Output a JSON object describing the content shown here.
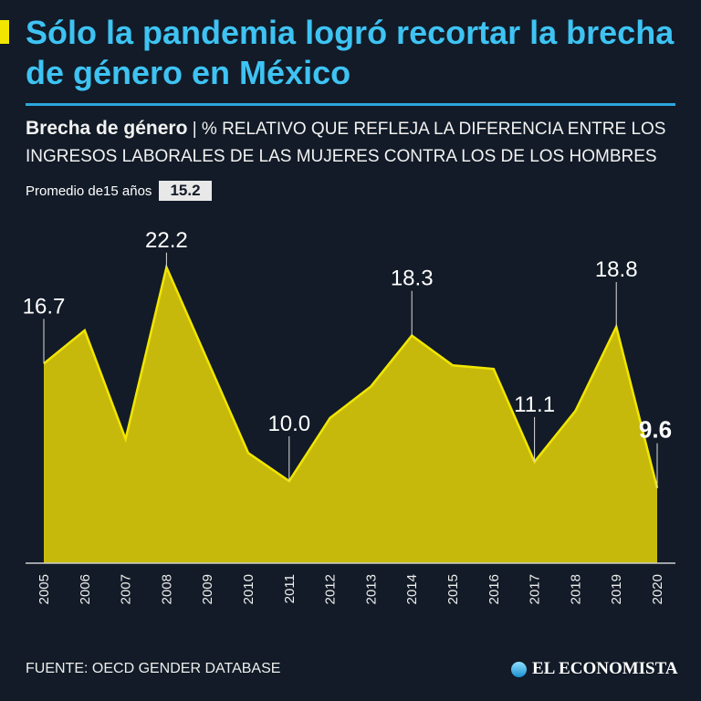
{
  "title": "Sólo la pandemia logró recortar la brecha de género en México",
  "subtitle_bold": "Brecha de género",
  "subtitle_rest": "| % RELATIVO QUE REFLEJA LA DIFERENCIA ENTRE LOS INGRESOS LABORALES DE LAS MUJERES CONTRA LOS DE LOS HOMBRES",
  "average_label": "Promedio de15 años",
  "average_value": "15.2",
  "source": "FUENTE: OECD GENDER DATABASE",
  "logo": "EL ECONOMISTA",
  "colors": {
    "title": "#3ec3f3",
    "fill": "#c7b90c",
    "line": "#f2e600",
    "background": "#121b27"
  },
  "chart_data": {
    "type": "area",
    "categories": [
      "2005",
      "2006",
      "2007",
      "2008",
      "2009",
      "2010",
      "2011",
      "2012",
      "2013",
      "2014",
      "2015",
      "2016",
      "2017",
      "2018",
      "2019",
      "2020"
    ],
    "values": [
      16.7,
      18.6,
      12.4,
      22.2,
      16.9,
      11.6,
      10.0,
      13.6,
      15.4,
      18.3,
      16.6,
      16.4,
      11.1,
      14.0,
      18.8,
      9.6
    ],
    "data_labels": {
      "2005": "16.7",
      "2008": "22.2",
      "2011": "10.0",
      "2014": "18.3",
      "2017": "11.1",
      "2019": "18.8",
      "2020": "9.6"
    },
    "ylim": [
      5.3,
      23
    ],
    "grid": false
  }
}
